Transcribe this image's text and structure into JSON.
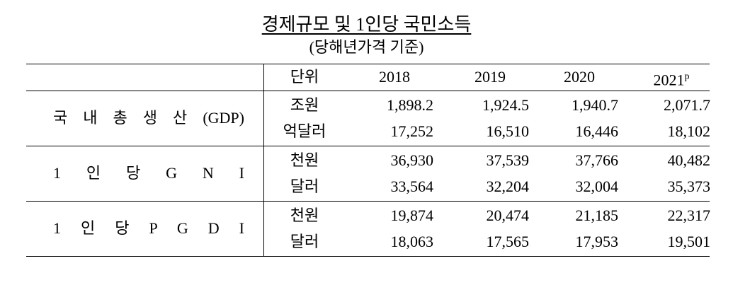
{
  "title": "경제규모 및 1인당 국민소득",
  "subtitle": "(당해년가격 기준)",
  "table": {
    "header": {
      "unit": "단위",
      "years": [
        "2018",
        "2019",
        "2020",
        "2021"
      ],
      "mark": "p"
    },
    "groups": [
      {
        "label": "국 내 총 생 산 (GDP)",
        "rows": [
          {
            "unit": "조원",
            "values": [
              "1,898.2",
              "1,924.5",
              "1,940.7",
              "2,071.7"
            ]
          },
          {
            "unit": "억달러",
            "values": [
              "17,252",
              "16,510",
              "16,446",
              "18,102"
            ]
          }
        ]
      },
      {
        "label": "1 인 당 G N I",
        "rows": [
          {
            "unit": "천원",
            "values": [
              "36,930",
              "37,539",
              "37,766",
              "40,482"
            ]
          },
          {
            "unit": "달러",
            "values": [
              "33,564",
              "32,204",
              "32,004",
              "35,373"
            ]
          }
        ]
      },
      {
        "label": "1 인 당 P G D I",
        "rows": [
          {
            "unit": "천원",
            "values": [
              "19,874",
              "20,474",
              "21,185",
              "22,317"
            ]
          },
          {
            "unit": "달러",
            "values": [
              "18,063",
              "17,565",
              "17,953",
              "19,501"
            ]
          }
        ]
      }
    ]
  }
}
